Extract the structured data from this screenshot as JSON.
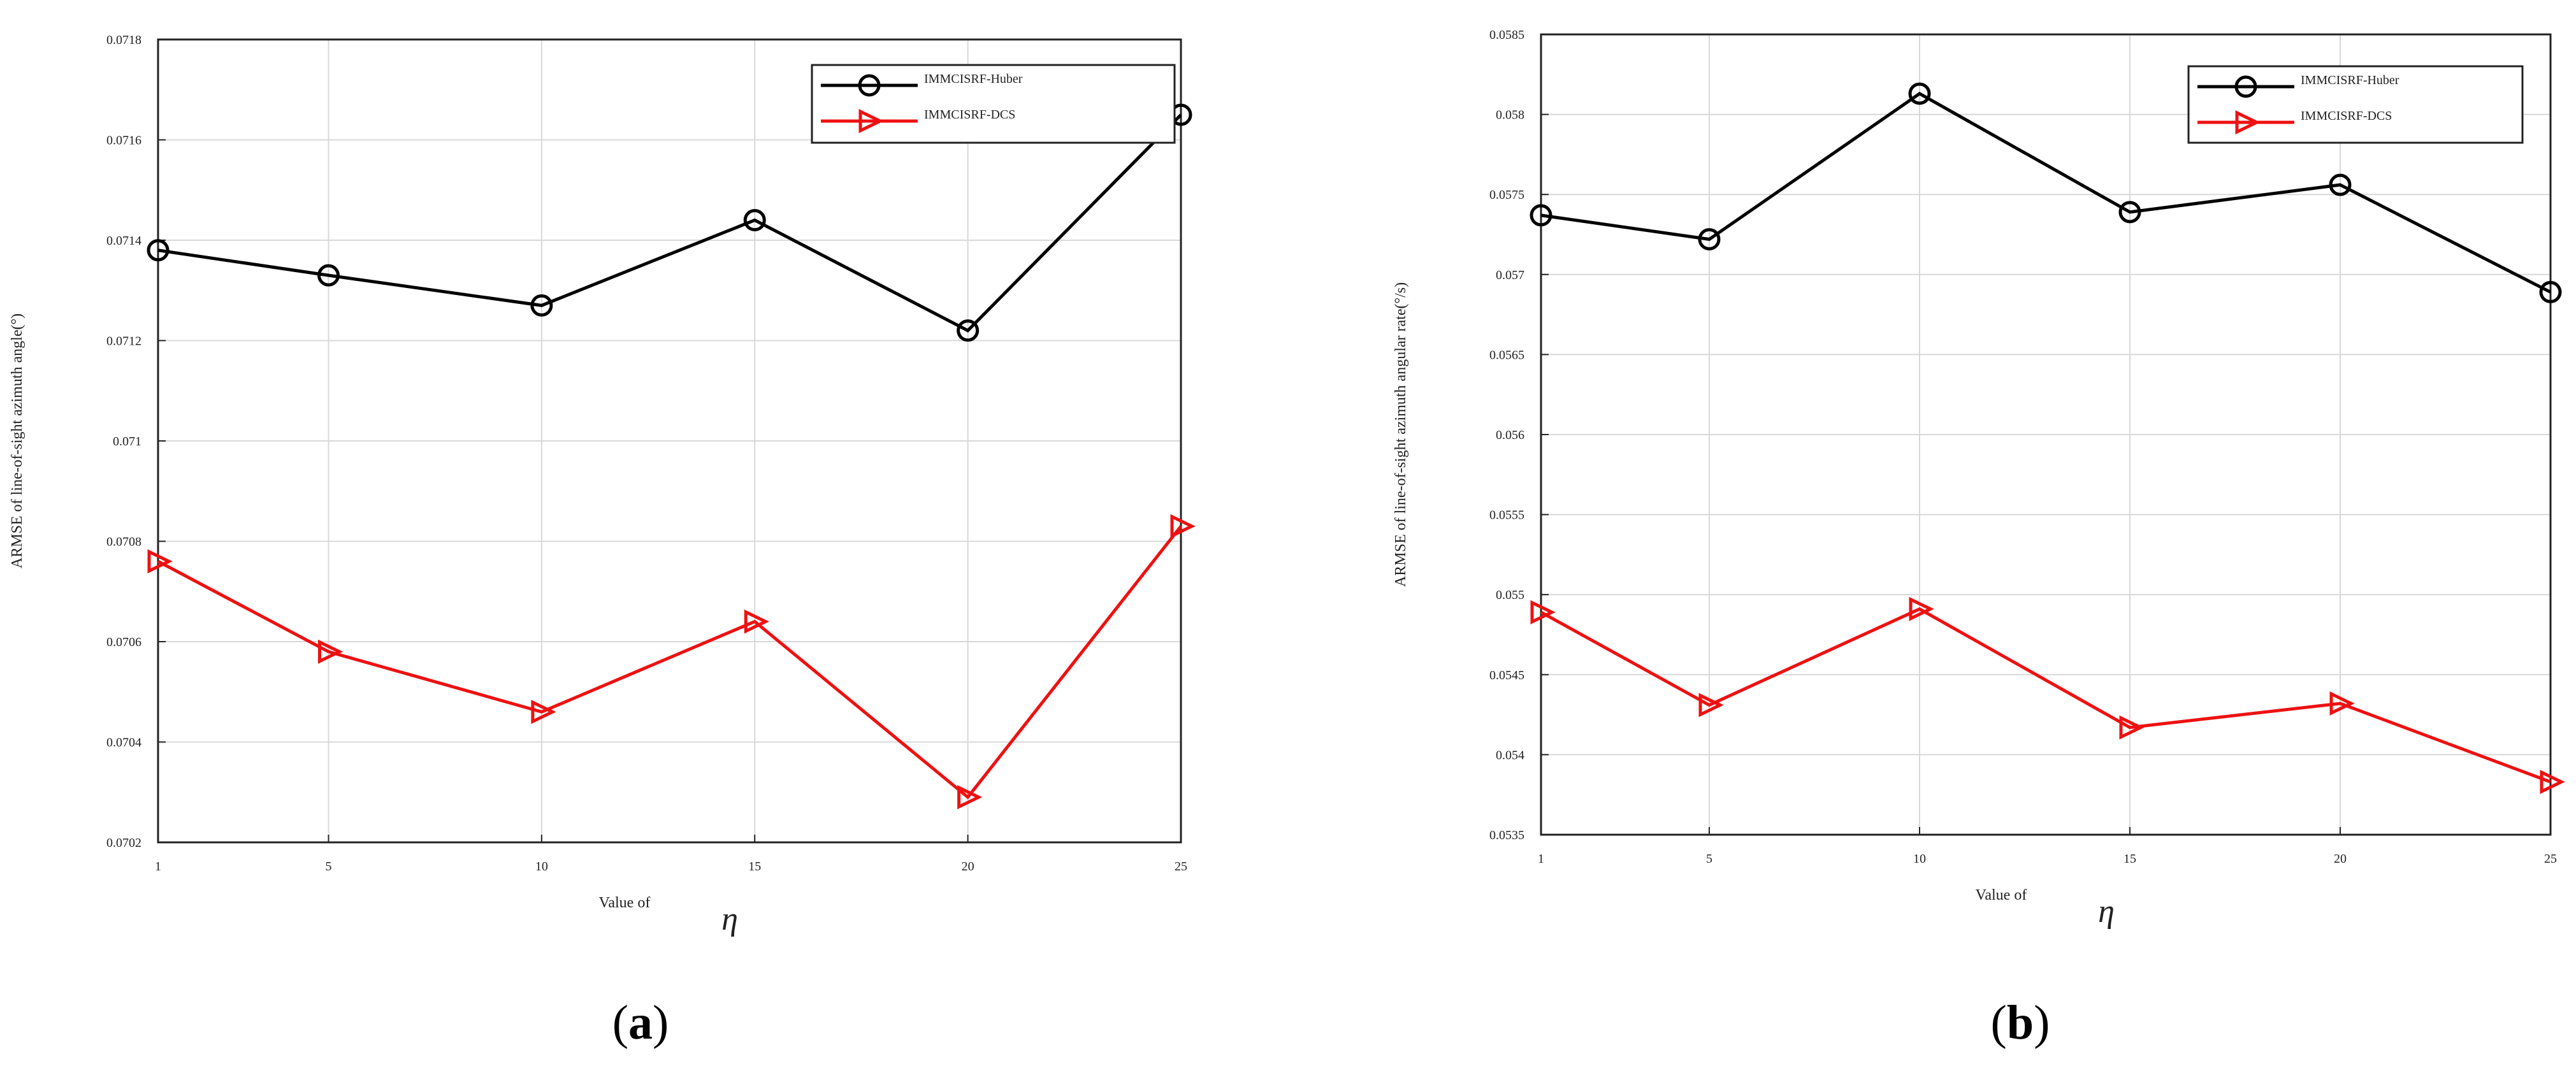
{
  "chart_data": [
    {
      "type": "line",
      "panel_label": "a",
      "xlabel": "Value of",
      "xlabel_symbol": "η",
      "ylabel": "ARMSE of line-of-sight azimuth angle(°)",
      "x": [
        1,
        5,
        10,
        15,
        20,
        25
      ],
      "x_ticks": [
        "1",
        "5",
        "10",
        "15",
        "20",
        "25"
      ],
      "y_ticks": [
        "0.0702",
        "0.0704",
        "0.0706",
        "0.0708",
        "0.071",
        "0.0712",
        "0.0714",
        "0.0716",
        "0.0718"
      ],
      "ylim": [
        0.0702,
        0.0718
      ],
      "grid": true,
      "legend_position": "top-right",
      "series": [
        {
          "name": "IMMCISRF-Huber",
          "marker": "circle",
          "color": "#000000",
          "values": [
            0.07138,
            0.07133,
            0.07127,
            0.07144,
            0.07122,
            0.07165
          ]
        },
        {
          "name": "IMMCISRF-DCS",
          "marker": "triangle-right",
          "color": "#ee1111",
          "values": [
            0.07076,
            0.07058,
            0.07046,
            0.07064,
            0.07029,
            0.07083
          ]
        }
      ]
    },
    {
      "type": "line",
      "panel_label": "b",
      "xlabel": "Value of",
      "xlabel_symbol": "η",
      "ylabel": "ARMSE of line-of-sight azimuth angular rate(°/s)",
      "x": [
        1,
        5,
        10,
        15,
        20,
        25
      ],
      "x_ticks": [
        "1",
        "5",
        "10",
        "15",
        "20",
        "25"
      ],
      "y_ticks": [
        "0.0535",
        "0.054",
        "0.0545",
        "0.055",
        "0.0555",
        "0.056",
        "0.0565",
        "0.057",
        "0.0575",
        "0.058",
        "0.0585"
      ],
      "ylim": [
        0.0535,
        0.0585
      ],
      "grid": true,
      "legend_position": "top-right",
      "series": [
        {
          "name": "IMMCISRF-Huber",
          "marker": "circle",
          "color": "#000000",
          "values": [
            0.05737,
            0.05722,
            0.05813,
            0.05739,
            0.05756,
            0.05689
          ]
        },
        {
          "name": "IMMCISRF-DCS",
          "marker": "triangle-right",
          "color": "#ee1111",
          "values": [
            0.05489,
            0.05431,
            0.05491,
            0.05417,
            0.05432,
            0.05383
          ]
        }
      ]
    }
  ]
}
